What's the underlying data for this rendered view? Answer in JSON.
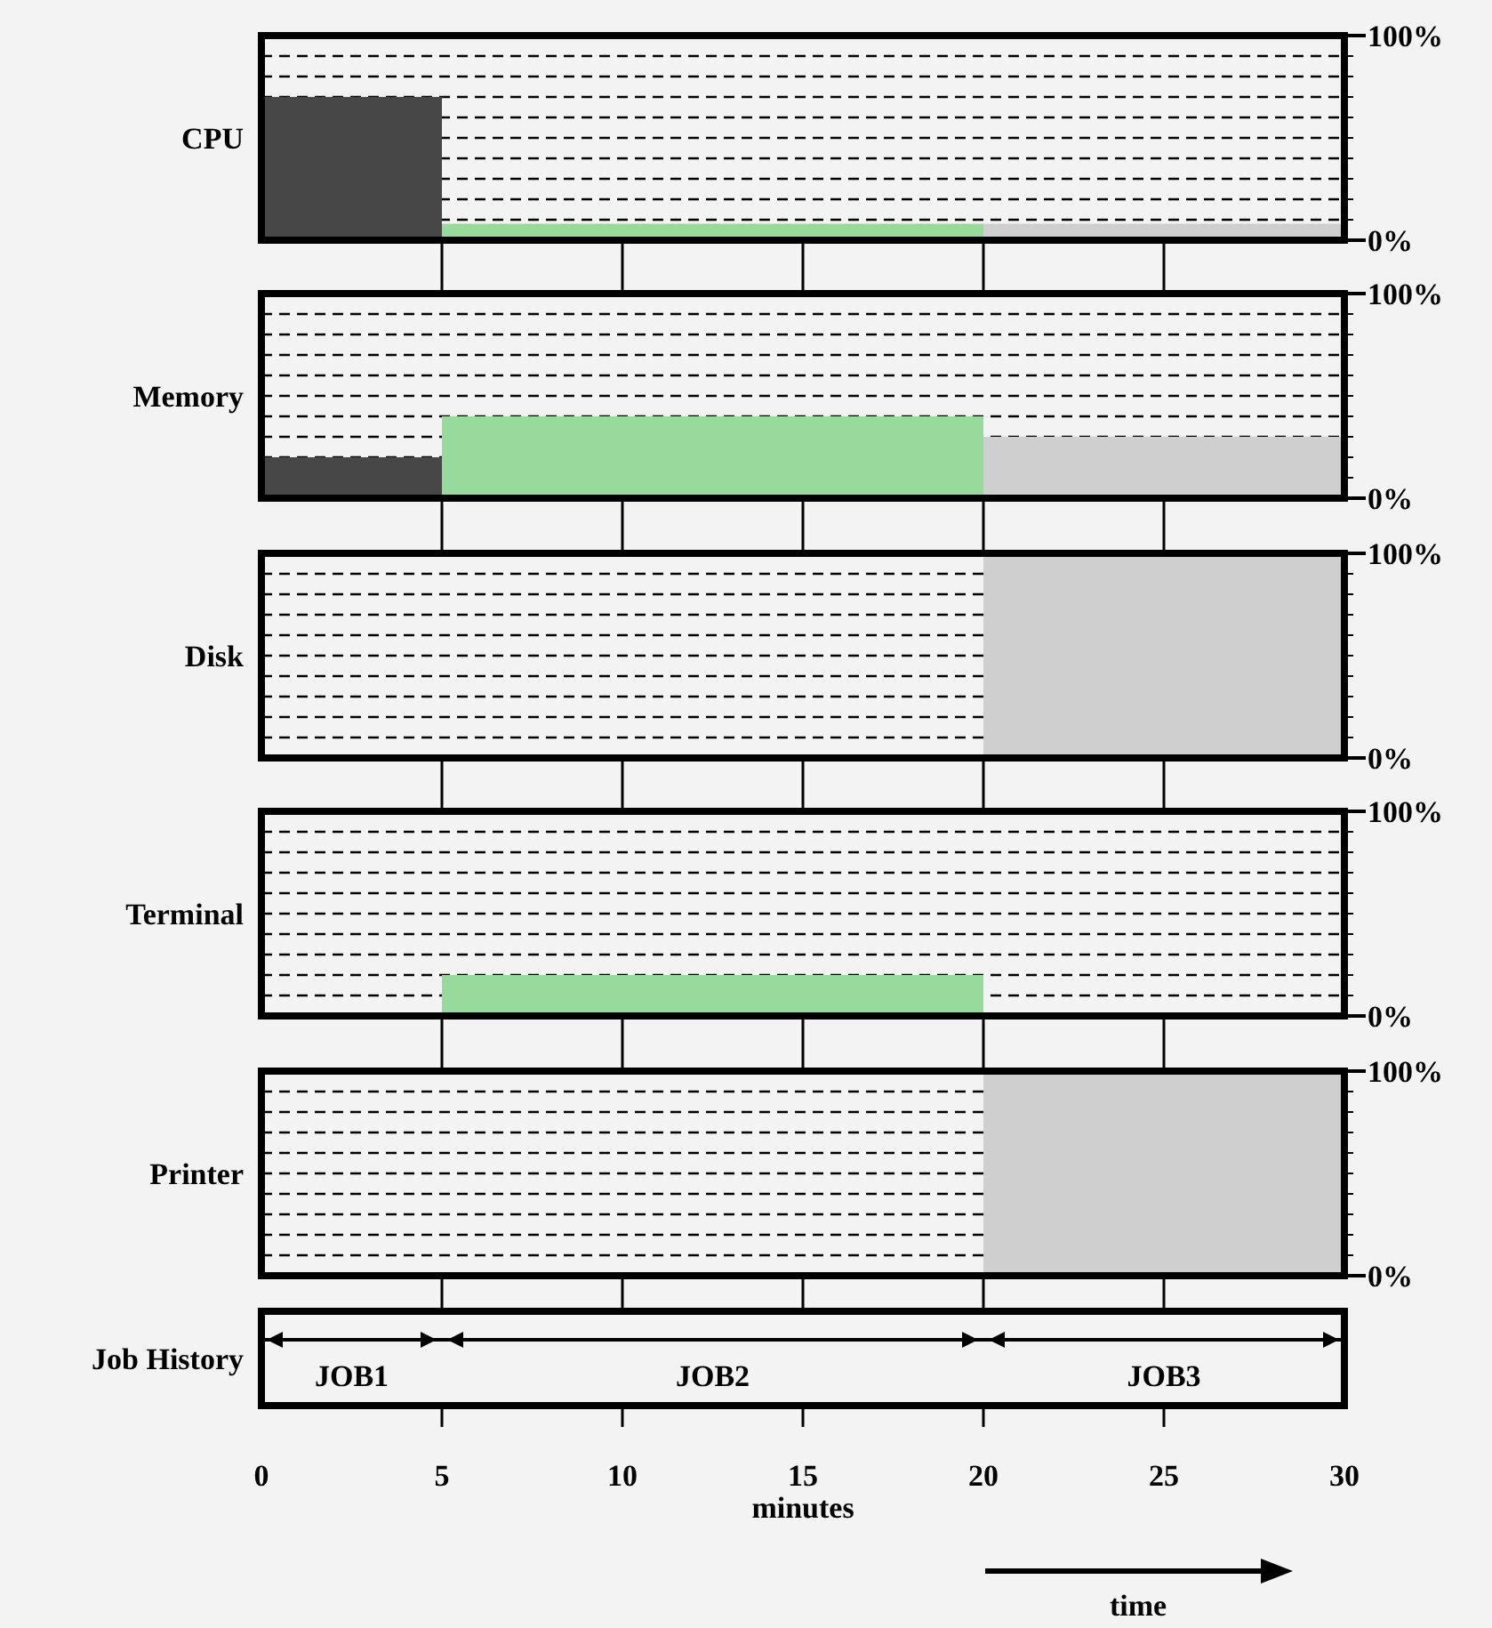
{
  "chart_data": [
    {
      "type": "area",
      "ylabel": "CPU",
      "xlim": [
        0,
        30
      ],
      "xticks": [
        0,
        5,
        10,
        15,
        20,
        25,
        30
      ],
      "ylim": [
        0,
        100
      ],
      "yticks": [
        {
          "value": 0,
          "label": "0%"
        },
        {
          "value": 10,
          "label": null
        },
        {
          "value": 20,
          "label": null
        },
        {
          "value": 30,
          "label": null
        },
        {
          "value": 40,
          "label": null
        },
        {
          "value": 50,
          "label": null
        },
        {
          "value": 60,
          "label": null
        },
        {
          "value": 70,
          "label": null
        },
        {
          "value": 80,
          "label": null
        },
        {
          "value": 90,
          "label": null
        },
        {
          "value": 100,
          "label": "100%"
        }
      ],
      "grid": "y",
      "line_style": "dashed",
      "tick_labels": "y",
      "series": [
        {
          "color": "#474747",
          "x": [
            0,
            5
          ],
          "values": [
            70,
            70
          ]
        },
        {
          "color": "#98d99c",
          "x": [
            5,
            20
          ],
          "values": [
            8,
            8
          ]
        },
        {
          "color": "#cfcfcf",
          "x": [
            20,
            30
          ],
          "values": [
            8,
            8
          ]
        }
      ]
    },
    {
      "type": "area",
      "ylabel": "Memory",
      "xlim": [
        0,
        30
      ],
      "xticks": [
        0,
        5,
        10,
        15,
        20,
        25,
        30
      ],
      "ylim": [
        0,
        100
      ],
      "yticks": [
        {
          "value": 0,
          "label": "0%"
        },
        {
          "value": 10,
          "label": null
        },
        {
          "value": 20,
          "label": null
        },
        {
          "value": 30,
          "label": null
        },
        {
          "value": 40,
          "label": null
        },
        {
          "value": 50,
          "label": null
        },
        {
          "value": 60,
          "label": null
        },
        {
          "value": 70,
          "label": null
        },
        {
          "value": 80,
          "label": null
        },
        {
          "value": 90,
          "label": null
        },
        {
          "value": 100,
          "label": "100%"
        }
      ],
      "grid": "y",
      "line_style": "dashed",
      "tick_labels": "y",
      "series": [
        {
          "color": "#474747",
          "x": [
            0,
            5
          ],
          "values": [
            20,
            20
          ]
        },
        {
          "color": "#98d99c",
          "x": [
            5,
            20
          ],
          "values": [
            40,
            40
          ]
        },
        {
          "color": "#cfcfcf",
          "x": [
            20,
            30
          ],
          "values": [
            30,
            30
          ]
        }
      ]
    },
    {
      "type": "area",
      "ylabel": "Disk",
      "xlim": [
        0,
        30
      ],
      "xticks": [
        0,
        5,
        10,
        15,
        20,
        25,
        30
      ],
      "ylim": [
        0,
        100
      ],
      "yticks": [
        {
          "value": 0,
          "label": "0%"
        },
        {
          "value": 10,
          "label": null
        },
        {
          "value": 20,
          "label": null
        },
        {
          "value": 30,
          "label": null
        },
        {
          "value": 40,
          "label": null
        },
        {
          "value": 50,
          "label": null
        },
        {
          "value": 60,
          "label": null
        },
        {
          "value": 70,
          "label": null
        },
        {
          "value": 80,
          "label": null
        },
        {
          "value": 90,
          "label": null
        },
        {
          "value": 100,
          "label": "100%"
        }
      ],
      "grid": "y",
      "line_style": "dashed",
      "tick_labels": "y",
      "series": [
        {
          "color": "#cfcfcf",
          "x": [
            20,
            30
          ],
          "values": [
            100,
            100
          ]
        }
      ]
    },
    {
      "type": "area",
      "ylabel": "Terminal",
      "xlim": [
        0,
        30
      ],
      "xticks": [
        0,
        5,
        10,
        15,
        20,
        25,
        30
      ],
      "ylim": [
        0,
        100
      ],
      "yticks": [
        {
          "value": 0,
          "label": "0%"
        },
        {
          "value": 10,
          "label": null
        },
        {
          "value": 20,
          "label": null
        },
        {
          "value": 30,
          "label": null
        },
        {
          "value": 40,
          "label": null
        },
        {
          "value": 50,
          "label": null
        },
        {
          "value": 60,
          "label": null
        },
        {
          "value": 70,
          "label": null
        },
        {
          "value": 80,
          "label": null
        },
        {
          "value": 90,
          "label": null
        },
        {
          "value": 100,
          "label": "100%"
        }
      ],
      "grid": "y",
      "line_style": "dashed",
      "tick_labels": "y",
      "series": [
        {
          "color": "#98d99c",
          "x": [
            5,
            20
          ],
          "values": [
            20,
            20
          ]
        }
      ]
    },
    {
      "type": "area",
      "ylabel": "Printer",
      "xlim": [
        0,
        30
      ],
      "xticks": [
        0,
        5,
        10,
        15,
        20,
        25,
        30
      ],
      "ylim": [
        0,
        100
      ],
      "yticks": [
        {
          "value": 0,
          "label": "0%"
        },
        {
          "value": 10,
          "label": null
        },
        {
          "value": 20,
          "label": null
        },
        {
          "value": 30,
          "label": null
        },
        {
          "value": 40,
          "label": null
        },
        {
          "value": 50,
          "label": null
        },
        {
          "value": 60,
          "label": null
        },
        {
          "value": 70,
          "label": null
        },
        {
          "value": 80,
          "label": null
        },
        {
          "value": 90,
          "label": null
        },
        {
          "value": 100,
          "label": "100%"
        }
      ],
      "grid": "y",
      "line_style": "dashed",
      "tick_labels": "y",
      "series": [
        {
          "color": "#cfcfcf",
          "x": [
            20,
            30
          ],
          "values": [
            100,
            100
          ]
        }
      ]
    },
    {
      "type": "bar",
      "orientation": "horizontal",
      "stacked": true,
      "xlabel": "minutes",
      "xlim": [
        0,
        30
      ],
      "xticks": [
        0,
        5,
        10,
        15,
        20,
        25,
        30
      ],
      "categories": [
        "Job History"
      ],
      "series": [
        {
          "name": "JOB1",
          "color": "#000000",
          "values": [
            5
          ]
        },
        {
          "name": "JOB2",
          "color": "#000000",
          "values": [
            15
          ]
        },
        {
          "name": "JOB3",
          "color": "#000000",
          "values": [
            10
          ]
        }
      ],
      "annotations": [
        "time"
      ]
    }
  ]
}
